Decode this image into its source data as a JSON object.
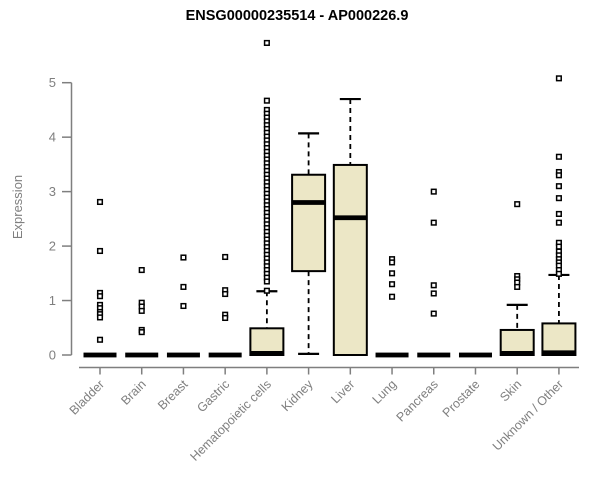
{
  "chart_data": {
    "type": "boxplot",
    "title": "ENSG00000235514 - AP000226.9",
    "xlabel": "",
    "ylabel": "Expression",
    "ylim": [
      0,
      5
    ],
    "yticks": [
      0,
      1,
      2,
      3,
      4,
      5
    ],
    "grid": false,
    "legend": null,
    "box_fill_color": "#ECE7C6",
    "box_border_color": "#000000",
    "axis_color": "#7f7f7f",
    "title_color": "#000000",
    "categories": [
      "Bladder",
      "Brain",
      "Breast",
      "Gastric",
      "Hematopoietic cells",
      "Kidney",
      "Liver",
      "Lung",
      "Pancreas",
      "Prostate",
      "Skin",
      "Unknown / Other"
    ],
    "series": [
      {
        "category": "Bladder",
        "whislo": 0,
        "q1": 0,
        "med": 0,
        "q3": 0,
        "whishi": 0,
        "fliers": [
          2.81,
          1.91,
          1.14,
          1.08,
          0.92,
          0.86,
          0.79,
          0.75,
          0.69,
          0.28
        ]
      },
      {
        "category": "Brain",
        "whislo": 0,
        "q1": 0,
        "med": 0,
        "q3": 0,
        "whishi": 0,
        "fliers": [
          1.56,
          0.96,
          0.89,
          0.81,
          0.46,
          0.42
        ]
      },
      {
        "category": "Breast",
        "whislo": 0,
        "q1": 0,
        "med": 0,
        "q3": 0,
        "whishi": 0,
        "fliers": [
          1.79,
          1.25,
          0.9
        ]
      },
      {
        "category": "Gastric",
        "whislo": 0,
        "q1": 0,
        "med": 0,
        "q3": 0,
        "whishi": 0,
        "fliers": [
          1.8,
          1.19,
          1.12,
          0.74,
          0.68
        ]
      },
      {
        "category": "Hematopoietic cells",
        "whislo": 0,
        "q1": 0,
        "med": 0.03,
        "q3": 0.49,
        "whishi": 1.17,
        "fliers": [
          5.73,
          4.67,
          4.5,
          4.43,
          4.36,
          4.29,
          4.22,
          4.15,
          4.08,
          4.01,
          3.94,
          3.87,
          3.8,
          3.73,
          3.66,
          3.59,
          3.52,
          3.45,
          3.38,
          3.31,
          3.24,
          3.17,
          3.1,
          3.03,
          2.96,
          2.89,
          2.82,
          2.75,
          2.68,
          2.61,
          2.54,
          2.47,
          2.4,
          2.33,
          2.26,
          2.19,
          2.12,
          2.05,
          1.98,
          1.91,
          1.84,
          1.77,
          1.7,
          1.63,
          1.56,
          1.49,
          1.42,
          1.35,
          1.18
        ]
      },
      {
        "category": "Kidney",
        "whislo": 0.02,
        "q1": 1.54,
        "med": 2.8,
        "q3": 3.31,
        "whishi": 4.07,
        "fliers": []
      },
      {
        "category": "Liver",
        "whislo": 0,
        "q1": 0,
        "med": 2.52,
        "q3": 3.49,
        "whishi": 4.7,
        "fliers": []
      },
      {
        "category": "Lung",
        "whislo": 0,
        "q1": 0,
        "med": 0,
        "q3": 0,
        "whishi": 0,
        "fliers": [
          1.76,
          1.7,
          1.5,
          1.3,
          1.07
        ]
      },
      {
        "category": "Pancreas",
        "whislo": 0,
        "q1": 0,
        "med": 0,
        "q3": 0,
        "whishi": 0,
        "fliers": [
          3.0,
          2.43,
          1.28,
          1.13,
          0.76
        ]
      },
      {
        "category": "Prostate",
        "whislo": 0,
        "q1": 0,
        "med": 0,
        "q3": 0,
        "whishi": 0,
        "fliers": []
      },
      {
        "category": "Skin",
        "whislo": 0,
        "q1": 0,
        "med": 0.03,
        "q3": 0.46,
        "whishi": 0.92,
        "fliers": [
          2.77,
          1.45,
          1.39,
          1.33,
          1.25
        ]
      },
      {
        "category": "Unknown / Other",
        "whislo": 0,
        "q1": 0,
        "med": 0.04,
        "q3": 0.58,
        "whishi": 1.47,
        "fliers": [
          5.08,
          3.64,
          3.36,
          3.3,
          3.1,
          2.88,
          2.59,
          2.43,
          2.06,
          1.99,
          1.9,
          1.83,
          1.76,
          1.7,
          1.64,
          1.56,
          1.49
        ]
      }
    ]
  }
}
